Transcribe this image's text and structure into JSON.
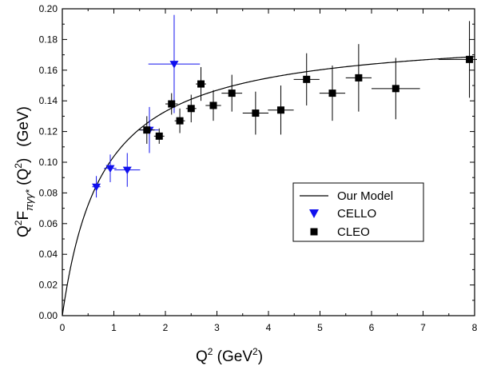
{
  "chart_data": {
    "type": "scatter",
    "xlim": [
      0,
      8
    ],
    "ylim": [
      0,
      0.2
    ],
    "x_ticks": [
      "0",
      "1",
      "2",
      "3",
      "4",
      "5",
      "6",
      "7",
      "8"
    ],
    "y_ticks": [
      "0.00",
      "0.02",
      "0.04",
      "0.06",
      "0.08",
      "0.10",
      "0.12",
      "0.14",
      "0.16",
      "0.18",
      "0.20"
    ],
    "xlabel": {
      "base": "Q",
      "sup": "2",
      "unit_open": " (GeV",
      "unit_sup": "2",
      "unit_close": ")"
    },
    "ylabel": {
      "base": "Q",
      "sup1": "2",
      "F": "F",
      "sub": "πγγ*",
      "arg_open": " (Q",
      "sup2": "2",
      "arg_close": ")",
      "unit": "(GeV)"
    },
    "legend": {
      "position": "center-right",
      "entries": [
        "Our Model",
        "CELLO",
        "CLEO"
      ]
    },
    "model": {
      "name": "Our Model",
      "color": "#000000",
      "asymptote": 0.1854,
      "scale": 0.786
    },
    "series": [
      {
        "name": "CELLO",
        "marker": "triangle-down",
        "color": "#1010ee",
        "points": [
          {
            "x": 0.66,
            "y": 0.084,
            "xerr": 0.08,
            "yerr": 0.007
          },
          {
            "x": 0.93,
            "y": 0.096,
            "xerr": 0.12,
            "yerr": 0.009
          },
          {
            "x": 1.26,
            "y": 0.095,
            "xerr": 0.25,
            "yerr": 0.011
          },
          {
            "x": 1.69,
            "y": 0.121,
            "xerr": 0.18,
            "yerr": 0.015
          },
          {
            "x": 2.17,
            "y": 0.164,
            "xerr": 0.5,
            "yerr": 0.032
          }
        ]
      },
      {
        "name": "CLEO",
        "marker": "square",
        "color": "#000000",
        "points": [
          {
            "x": 1.64,
            "y": 0.121,
            "xerr": 0.15,
            "yerr": 0.009
          },
          {
            "x": 1.88,
            "y": 0.117,
            "xerr": 0.1,
            "yerr": 0.005
          },
          {
            "x": 2.12,
            "y": 0.138,
            "xerr": 0.12,
            "yerr": 0.007
          },
          {
            "x": 2.28,
            "y": 0.127,
            "xerr": 0.1,
            "yerr": 0.008
          },
          {
            "x": 2.5,
            "y": 0.135,
            "xerr": 0.1,
            "yerr": 0.009
          },
          {
            "x": 2.69,
            "y": 0.151,
            "xerr": 0.1,
            "yerr": 0.011
          },
          {
            "x": 2.93,
            "y": 0.137,
            "xerr": 0.15,
            "yerr": 0.01
          },
          {
            "x": 3.29,
            "y": 0.145,
            "xerr": 0.2,
            "yerr": 0.012
          },
          {
            "x": 3.75,
            "y": 0.132,
            "xerr": 0.25,
            "yerr": 0.014
          },
          {
            "x": 4.24,
            "y": 0.134,
            "xerr": 0.25,
            "yerr": 0.016
          },
          {
            "x": 4.74,
            "y": 0.154,
            "xerr": 0.25,
            "yerr": 0.017
          },
          {
            "x": 5.24,
            "y": 0.145,
            "xerr": 0.25,
            "yerr": 0.018
          },
          {
            "x": 5.75,
            "y": 0.155,
            "xerr": 0.25,
            "yerr": 0.022
          },
          {
            "x": 6.47,
            "y": 0.148,
            "xerr": 0.47,
            "yerr": 0.02
          },
          {
            "x": 7.9,
            "y": 0.167,
            "xerr": 0.6,
            "yerr": 0.025
          }
        ]
      }
    ]
  }
}
